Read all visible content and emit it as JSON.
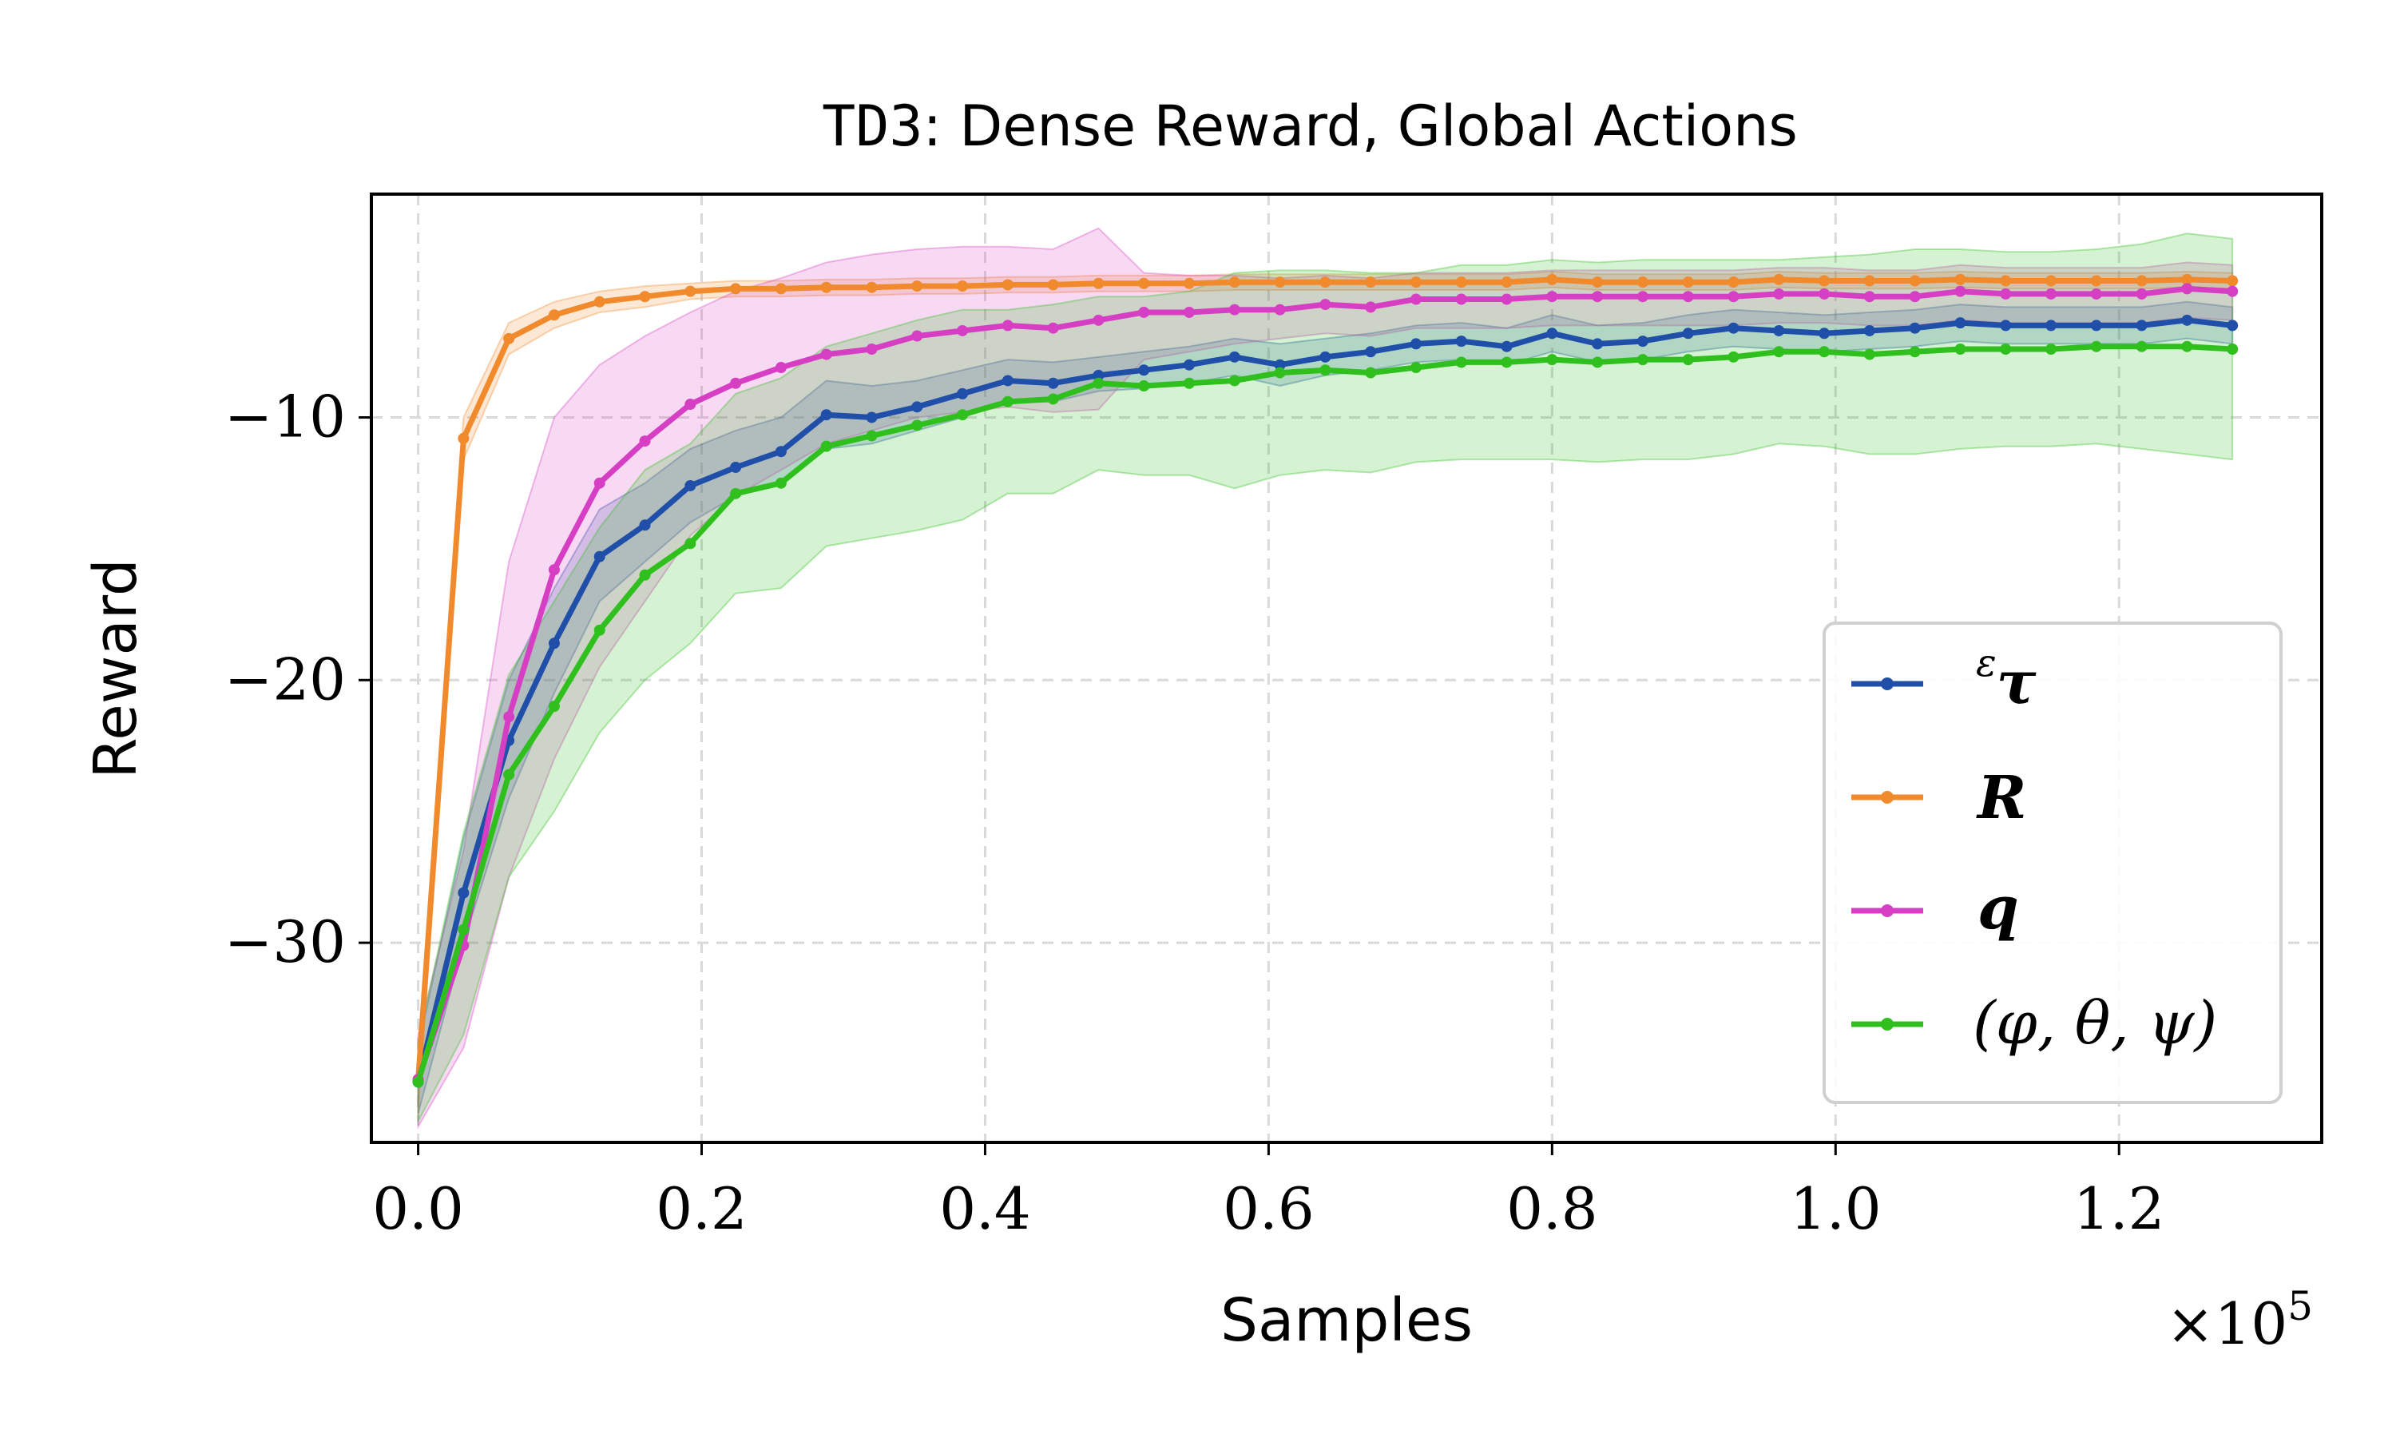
{
  "chart_data": {
    "type": "line",
    "title_prefix": "TD3",
    "title_rest": ": Dense Reward, Global Actions",
    "xlabel": "Samples",
    "ylabel": "Reward",
    "x_multiplier_label": "×10",
    "x_multiplier_exponent": "5",
    "xlim": [
      -0.033,
      1.343
    ],
    "ylim": [
      -37.6,
      -1.5
    ],
    "xticks": [
      0.0,
      0.2,
      0.4,
      0.6,
      0.8,
      1.0,
      1.2
    ],
    "xtick_labels": [
      "0.0",
      "0.2",
      "0.4",
      "0.6",
      "0.8",
      "1.0",
      "1.2"
    ],
    "yticks": [
      -10,
      -20,
      -30
    ],
    "ytick_labels": [
      "−10",
      "−20",
      "−30"
    ],
    "grid": true,
    "legend_position": "lower-right",
    "x": [
      0.0,
      0.032,
      0.064,
      0.096,
      0.128,
      0.16,
      0.192,
      0.224,
      0.256,
      0.288,
      0.32,
      0.352,
      0.384,
      0.416,
      0.448,
      0.48,
      0.512,
      0.544,
      0.576,
      0.608,
      0.64,
      0.672,
      0.704,
      0.736,
      0.768,
      0.8,
      0.832,
      0.864,
      0.896,
      0.928,
      0.96,
      0.992,
      1.024,
      1.056,
      1.088,
      1.12,
      1.152,
      1.184,
      1.216,
      1.248,
      1.28
    ],
    "series": [
      {
        "name": "τ",
        "legend_prefix": "ε",
        "legend_main": "τ",
        "color": "#1f4fa8",
        "values": [
          -35.3,
          -28.1,
          -22.3,
          -18.6,
          -15.3,
          -14.1,
          -12.6,
          -11.9,
          -11.3,
          -9.9,
          -10.0,
          -9.6,
          -9.1,
          -8.6,
          -8.7,
          -8.4,
          -8.2,
          -8.0,
          -7.7,
          -8.0,
          -7.7,
          -7.5,
          -7.2,
          -7.1,
          -7.3,
          -6.8,
          -7.2,
          -7.1,
          -6.8,
          -6.6,
          -6.7,
          -6.8,
          -6.7,
          -6.6,
          -6.4,
          -6.5,
          -6.5,
          -6.5,
          -6.5,
          -6.3,
          -6.5
        ],
        "lower": [
          -36.5,
          -30.0,
          -24.5,
          -20.5,
          -17.0,
          -15.5,
          -14.0,
          -13.0,
          -12.5,
          -11.2,
          -11.0,
          -10.5,
          -10.0,
          -9.4,
          -9.4,
          -9.0,
          -8.9,
          -8.7,
          -8.4,
          -8.8,
          -8.4,
          -8.2,
          -7.9,
          -7.8,
          -8.0,
          -7.5,
          -7.9,
          -7.8,
          -7.5,
          -7.3,
          -7.4,
          -7.5,
          -7.4,
          -7.3,
          -7.1,
          -7.2,
          -7.2,
          -7.2,
          -7.2,
          -7.0,
          -7.2
        ],
        "upper": [
          -34.0,
          -26.0,
          -20.0,
          -16.5,
          -13.5,
          -12.5,
          -11.2,
          -10.5,
          -10.0,
          -8.6,
          -8.8,
          -8.6,
          -8.2,
          -7.8,
          -7.9,
          -7.7,
          -7.5,
          -7.3,
          -7.0,
          -7.2,
          -7.0,
          -6.8,
          -6.5,
          -6.4,
          -6.6,
          -6.1,
          -6.5,
          -6.4,
          -6.1,
          -5.9,
          -6.0,
          -6.1,
          -6.0,
          -5.9,
          -5.7,
          -5.8,
          -5.8,
          -5.8,
          -5.8,
          -5.6,
          -5.8
        ]
      },
      {
        "name": "R",
        "legend_main": "R",
        "color": "#f08a2c",
        "values": [
          -35.2,
          -10.8,
          -7.0,
          -6.1,
          -5.6,
          -5.4,
          -5.2,
          -5.1,
          -5.1,
          -5.05,
          -5.05,
          -5.0,
          -5.0,
          -4.95,
          -4.95,
          -4.9,
          -4.9,
          -4.9,
          -4.85,
          -4.85,
          -4.85,
          -4.85,
          -4.85,
          -4.85,
          -4.85,
          -4.75,
          -4.85,
          -4.85,
          -4.85,
          -4.85,
          -4.75,
          -4.8,
          -4.8,
          -4.8,
          -4.75,
          -4.8,
          -4.8,
          -4.8,
          -4.8,
          -4.75,
          -4.8
        ],
        "lower": [
          -36.5,
          -11.6,
          -7.6,
          -6.6,
          -6.0,
          -5.8,
          -5.5,
          -5.4,
          -5.4,
          -5.35,
          -5.35,
          -5.3,
          -5.3,
          -5.25,
          -5.25,
          -5.2,
          -5.2,
          -5.2,
          -5.15,
          -5.15,
          -5.15,
          -5.15,
          -5.15,
          -5.15,
          -5.15,
          -5.05,
          -5.15,
          -5.15,
          -5.15,
          -5.15,
          -5.05,
          -5.1,
          -5.1,
          -5.1,
          -5.05,
          -5.1,
          -5.1,
          -5.1,
          -5.1,
          -5.05,
          -5.1
        ],
        "upper": [
          -34.0,
          -10.0,
          -6.4,
          -5.6,
          -5.2,
          -5.0,
          -4.9,
          -4.8,
          -4.8,
          -4.75,
          -4.75,
          -4.7,
          -4.7,
          -4.65,
          -4.65,
          -4.6,
          -4.6,
          -4.6,
          -4.55,
          -4.55,
          -4.55,
          -4.55,
          -4.55,
          -4.55,
          -4.55,
          -4.45,
          -4.55,
          -4.55,
          -4.55,
          -4.55,
          -4.45,
          -4.5,
          -4.5,
          -4.5,
          -4.45,
          -4.5,
          -4.5,
          -4.5,
          -4.5,
          -4.45,
          -4.5
        ]
      },
      {
        "name": "q",
        "legend_main": "q",
        "color": "#d63fc4",
        "values": [
          -35.2,
          -30.1,
          -21.4,
          -15.8,
          -12.5,
          -10.9,
          -9.5,
          -8.7,
          -8.1,
          -7.6,
          -7.4,
          -6.9,
          -6.7,
          -6.5,
          -6.6,
          -6.3,
          -6.0,
          -6.0,
          -5.9,
          -5.9,
          -5.7,
          -5.8,
          -5.5,
          -5.5,
          -5.5,
          -5.4,
          -5.4,
          -5.4,
          -5.4,
          -5.4,
          -5.3,
          -5.3,
          -5.4,
          -5.4,
          -5.2,
          -5.3,
          -5.3,
          -5.3,
          -5.3,
          -5.1,
          -5.2
        ],
        "lower": [
          -37.0,
          -34.0,
          -27.5,
          -23.0,
          -19.5,
          -17.0,
          -14.5,
          -13.0,
          -12.0,
          -11.0,
          -10.5,
          -10.0,
          -9.8,
          -9.6,
          -9.8,
          -9.7,
          -7.8,
          -7.5,
          -7.2,
          -7.0,
          -6.8,
          -6.9,
          -6.6,
          -6.6,
          -6.6,
          -6.5,
          -6.5,
          -6.5,
          -6.5,
          -6.5,
          -6.4,
          -6.4,
          -6.5,
          -6.5,
          -6.3,
          -6.4,
          -6.4,
          -6.4,
          -6.4,
          -6.2,
          -6.3
        ],
        "upper": [
          -33.5,
          -26.5,
          -15.5,
          -10.0,
          -8.0,
          -6.9,
          -6.0,
          -5.2,
          -4.7,
          -4.1,
          -3.8,
          -3.6,
          -3.5,
          -3.5,
          -3.6,
          -2.8,
          -4.5,
          -4.6,
          -4.6,
          -4.7,
          -4.6,
          -4.7,
          -4.5,
          -4.5,
          -4.5,
          -4.4,
          -4.4,
          -4.4,
          -4.4,
          -4.4,
          -4.3,
          -4.3,
          -4.4,
          -4.4,
          -4.2,
          -4.3,
          -4.3,
          -4.3,
          -4.3,
          -4.1,
          -4.2
        ]
      },
      {
        "name": "(φ, θ, ψ)",
        "legend_main": "(φ, θ, ψ)",
        "color": "#2fc01e",
        "values": [
          -35.3,
          -29.5,
          -23.6,
          -21.0,
          -18.1,
          -16.0,
          -14.8,
          -12.9,
          -12.5,
          -11.1,
          -10.7,
          -10.3,
          -9.9,
          -9.4,
          -9.3,
          -8.7,
          -8.8,
          -8.7,
          -8.6,
          -8.3,
          -8.2,
          -8.3,
          -8.1,
          -7.9,
          -7.9,
          -7.8,
          -7.9,
          -7.8,
          -7.8,
          -7.7,
          -7.5,
          -7.5,
          -7.6,
          -7.5,
          -7.4,
          -7.4,
          -7.4,
          -7.3,
          -7.3,
          -7.3,
          -7.4
        ],
        "lower": [
          -36.8,
          -33.5,
          -27.5,
          -25.0,
          -22.0,
          -20.0,
          -18.6,
          -16.7,
          -16.5,
          -14.9,
          -14.6,
          -14.3,
          -13.9,
          -12.9,
          -12.9,
          -12.0,
          -12.2,
          -12.2,
          -12.7,
          -12.2,
          -12.0,
          -12.1,
          -11.7,
          -11.6,
          -11.6,
          -11.6,
          -11.7,
          -11.6,
          -11.6,
          -11.4,
          -11.0,
          -11.1,
          -11.4,
          -11.4,
          -11.2,
          -11.1,
          -11.1,
          -11.0,
          -11.2,
          -11.4,
          -11.6
        ],
        "upper": [
          -33.8,
          -25.8,
          -19.8,
          -17.0,
          -14.2,
          -12.0,
          -11.0,
          -9.1,
          -8.5,
          -7.3,
          -6.8,
          -6.3,
          -5.9,
          -5.9,
          -5.7,
          -5.4,
          -5.4,
          -5.2,
          -4.5,
          -4.4,
          -4.4,
          -4.5,
          -4.5,
          -4.2,
          -4.2,
          -4.0,
          -4.1,
          -4.0,
          -4.0,
          -4.0,
          -4.0,
          -3.9,
          -3.8,
          -3.6,
          -3.6,
          -3.7,
          -3.7,
          -3.6,
          -3.4,
          -3.0,
          -3.2
        ]
      }
    ]
  }
}
